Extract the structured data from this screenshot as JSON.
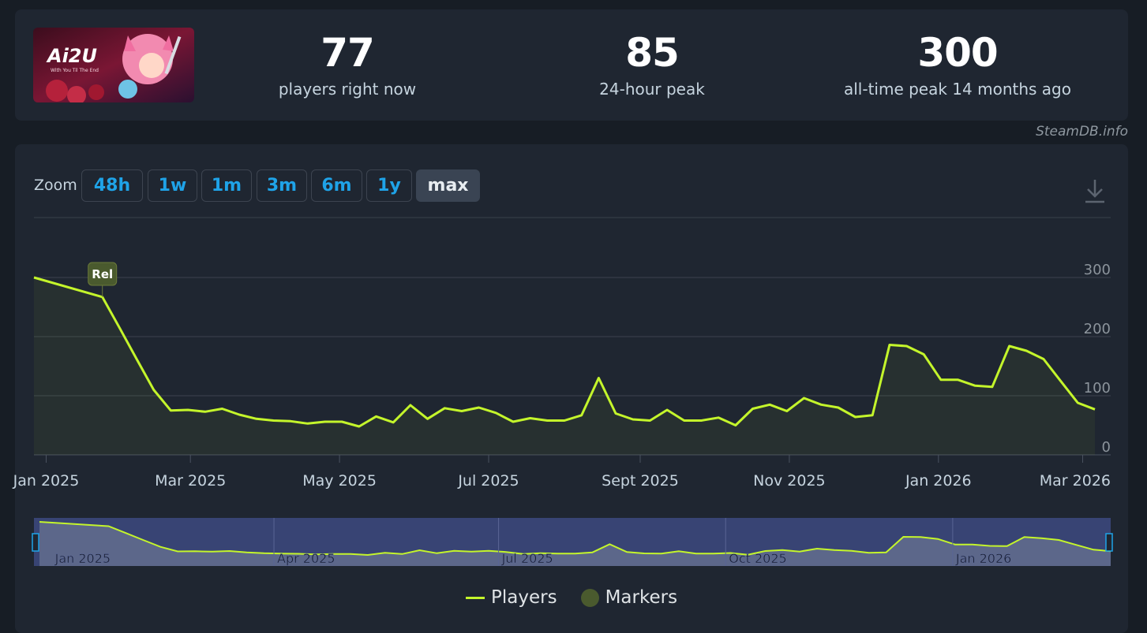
{
  "header": {
    "game_image_text": "Ai2U",
    "game_image_subtext": "With You Til The End",
    "stats": [
      {
        "value": "77",
        "label": "players right now"
      },
      {
        "value": "85",
        "label": "24-hour peak"
      },
      {
        "value": "300",
        "label": "all-time peak 14 months ago"
      }
    ],
    "credit": "SteamDB.info"
  },
  "toolbar": {
    "zoom_label": "Zoom",
    "zoom_options": [
      "48h",
      "1w",
      "1m",
      "3m",
      "6m",
      "1y",
      "max"
    ],
    "active_zoom": "max"
  },
  "colors": {
    "line": "#c4f52b",
    "marker": "#4a5a2e",
    "link": "#1fa3e8",
    "navigator_bg": "#3d4a80"
  },
  "chart_data": {
    "type": "line",
    "x_tick_labels": [
      "Jan 2025",
      "Mar 2025",
      "May 2025",
      "Jul 2025",
      "Sept 2025",
      "Nov 2025",
      "Jan 2026",
      "Mar 2026"
    ],
    "y_tick_labels": [
      "0",
      "100",
      "200",
      "300"
    ],
    "ylim": [
      0,
      330
    ],
    "grid": true,
    "series": [
      {
        "name": "Players",
        "x": [
          "2024-12-27",
          "2025-01-24",
          "2025-01-31",
          "2025-02-07",
          "2025-02-14",
          "2025-02-21",
          "2025-02-28",
          "2025-03-07",
          "2025-03-14",
          "2025-03-21",
          "2025-03-28",
          "2025-04-04",
          "2025-04-11",
          "2025-04-18",
          "2025-04-25",
          "2025-05-02",
          "2025-05-09",
          "2025-05-16",
          "2025-05-23",
          "2025-05-30",
          "2025-06-06",
          "2025-06-13",
          "2025-06-20",
          "2025-06-27",
          "2025-07-04",
          "2025-07-11",
          "2025-07-18",
          "2025-07-25",
          "2025-08-01",
          "2025-08-08",
          "2025-08-15",
          "2025-08-22",
          "2025-08-29",
          "2025-09-05",
          "2025-09-12",
          "2025-09-19",
          "2025-09-26",
          "2025-10-03",
          "2025-10-10",
          "2025-10-17",
          "2025-10-24",
          "2025-10-31",
          "2025-11-07",
          "2025-11-14",
          "2025-11-21",
          "2025-11-28",
          "2025-12-05",
          "2025-12-12",
          "2025-12-19",
          "2025-12-26",
          "2026-01-02",
          "2026-01-09",
          "2026-01-16",
          "2026-01-23",
          "2026-01-30",
          "2026-02-06",
          "2026-02-13",
          "2026-02-20",
          "2026-02-27",
          "2026-03-06"
        ],
        "values": [
          300,
          267,
          215,
          162,
          110,
          75,
          76,
          73,
          78,
          68,
          61,
          58,
          57,
          53,
          56,
          56,
          48,
          65,
          55,
          84,
          61,
          79,
          74,
          80,
          71,
          56,
          62,
          58,
          58,
          67,
          130,
          70,
          60,
          58,
          76,
          58,
          58,
          63,
          50,
          78,
          85,
          74,
          96,
          85,
          80,
          64,
          67,
          186,
          184,
          170,
          127,
          127,
          117,
          115,
          184,
          176,
          162,
          125,
          88,
          77
        ]
      }
    ],
    "markers": [
      {
        "label": "Rel",
        "x": "2025-01-24"
      }
    ],
    "navigator": {
      "x_tick_labels": [
        "Jan 2025",
        "Apr 2025",
        "Jul 2025",
        "Oct 2025",
        "Jan 2026"
      ]
    },
    "legend": [
      {
        "name": "Players"
      },
      {
        "name": "Markers"
      }
    ]
  }
}
